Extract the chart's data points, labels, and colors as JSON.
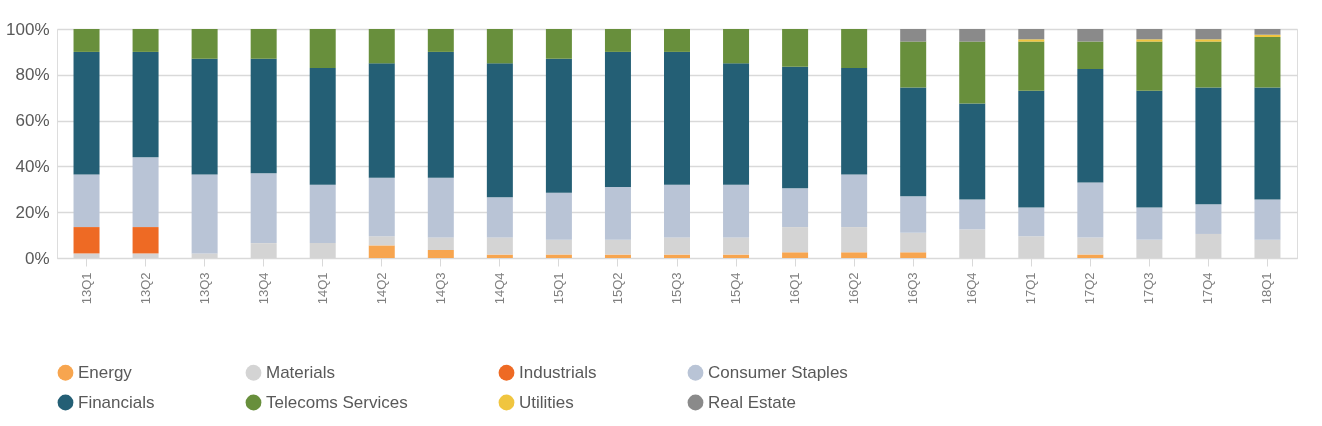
{
  "chart_data": {
    "type": "bar",
    "stacked": true,
    "categories": [
      "13Q1",
      "13Q2",
      "13Q3",
      "13Q4",
      "14Q1",
      "14Q2",
      "14Q3",
      "14Q4",
      "15Q1",
      "15Q2",
      "15Q3",
      "15Q4",
      "16Q1",
      "16Q2",
      "16Q3",
      "16Q4",
      "17Q1",
      "17Q2",
      "17Q3",
      "17Q4",
      "18Q1"
    ],
    "series": [
      {
        "name": "Energy",
        "color": "#f7a54f",
        "values": [
          null,
          null,
          null,
          null,
          null,
          5.5,
          3.5,
          1.5,
          1.5,
          1.5,
          1.5,
          1.5,
          2.5,
          2.5,
          2.5,
          null,
          null,
          1.5,
          null,
          null,
          null
        ]
      },
      {
        "name": "Materials",
        "color": "#d4d4d4",
        "values": [
          2,
          2,
          2,
          6.5,
          6.5,
          4,
          5.5,
          7.5,
          6.5,
          6.5,
          7.5,
          7.5,
          11,
          11,
          8.5,
          12.5,
          9.5,
          7.5,
          8,
          10.5,
          8
        ]
      },
      {
        "name": "Industrials",
        "color": "#ee6a24",
        "values": [
          11.5,
          11.5,
          null,
          null,
          null,
          null,
          null,
          null,
          null,
          null,
          null,
          null,
          null,
          null,
          null,
          null,
          null,
          null,
          null,
          null,
          null
        ]
      },
      {
        "name": "Consumer Staples",
        "color": "#b9c4d6",
        "values": [
          23,
          30.5,
          34.5,
          30.5,
          25.5,
          25.5,
          26,
          17.5,
          20.5,
          23,
          23,
          23,
          17,
          23,
          16,
          13,
          12.5,
          24,
          14,
          13,
          17.5
        ]
      },
      {
        "name": "Financials",
        "color": "#245f75",
        "values": [
          53.5,
          46,
          50.5,
          50,
          51,
          50,
          55,
          58.5,
          58.5,
          59,
          58,
          53,
          53,
          46.5,
          47.5,
          42,
          51,
          49.5,
          51,
          51,
          49
        ]
      },
      {
        "name": "Telecoms Services",
        "color": "#688f3c",
        "values": [
          10,
          10,
          13,
          13,
          17,
          15,
          10,
          15,
          13,
          10,
          10,
          15,
          16.5,
          17,
          20,
          27,
          21.5,
          12,
          21.5,
          20,
          22
        ]
      },
      {
        "name": "Utilities",
        "color": "#f0c53f",
        "values": [
          null,
          null,
          null,
          null,
          null,
          null,
          null,
          null,
          null,
          null,
          null,
          null,
          null,
          null,
          null,
          null,
          1,
          null,
          1,
          1,
          1
        ]
      },
      {
        "name": "Real Estate",
        "color": "#8a8a8a",
        "values": [
          null,
          null,
          null,
          null,
          null,
          null,
          null,
          null,
          null,
          null,
          null,
          null,
          null,
          null,
          5.5,
          5.5,
          4.5,
          5.5,
          4.5,
          4.5,
          2.5
        ]
      }
    ],
    "ylim": [
      0,
      100
    ],
    "yticks": [
      {
        "value": 0,
        "label": "0%"
      },
      {
        "value": 20,
        "label": "20%"
      },
      {
        "value": 40,
        "label": "40%"
      },
      {
        "value": 60,
        "label": "60%"
      },
      {
        "value": 80,
        "label": "80%"
      },
      {
        "value": 100,
        "label": "100%"
      }
    ],
    "grid": "y",
    "legend": "bottom"
  }
}
